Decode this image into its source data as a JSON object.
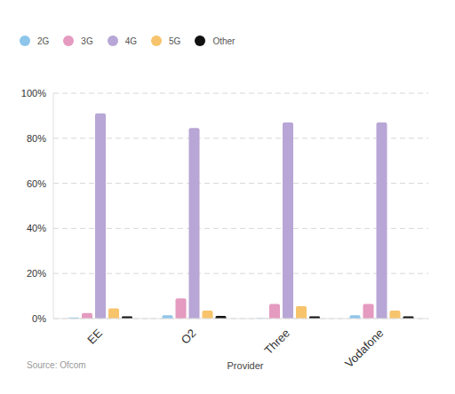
{
  "chart_data": {
    "type": "bar",
    "categories": [
      "EE",
      "O2",
      "Three",
      "Vodafone"
    ],
    "series": [
      {
        "name": "2G",
        "color": "#8ec5ea",
        "values": [
          0.5,
          1.5,
          0.2,
          1.5
        ]
      },
      {
        "name": "3G",
        "color": "#e59ac0",
        "values": [
          2.5,
          9,
          6.5,
          6.5
        ]
      },
      {
        "name": "4G",
        "color": "#b8a6d6",
        "values": [
          91,
          84.5,
          87,
          87
        ]
      },
      {
        "name": "5G",
        "color": "#f7c46c",
        "values": [
          4.5,
          3.5,
          5.5,
          3.5
        ]
      },
      {
        "name": "Other",
        "color": "#111111",
        "values": [
          1,
          1.2,
          1,
          1
        ]
      }
    ],
    "x_label": "Provider",
    "annotations": [
      "Source: Ofcom"
    ],
    "ylim": [
      0,
      100
    ],
    "yticks": [
      {
        "value": 0,
        "label": "0%"
      },
      {
        "value": 20,
        "label": "20%"
      },
      {
        "value": 40,
        "label": "40%"
      },
      {
        "value": 60,
        "label": "60%"
      },
      {
        "value": 80,
        "label": "80%"
      },
      {
        "value": 100,
        "label": "100%"
      }
    ],
    "grid": true,
    "legend": "top-left"
  }
}
